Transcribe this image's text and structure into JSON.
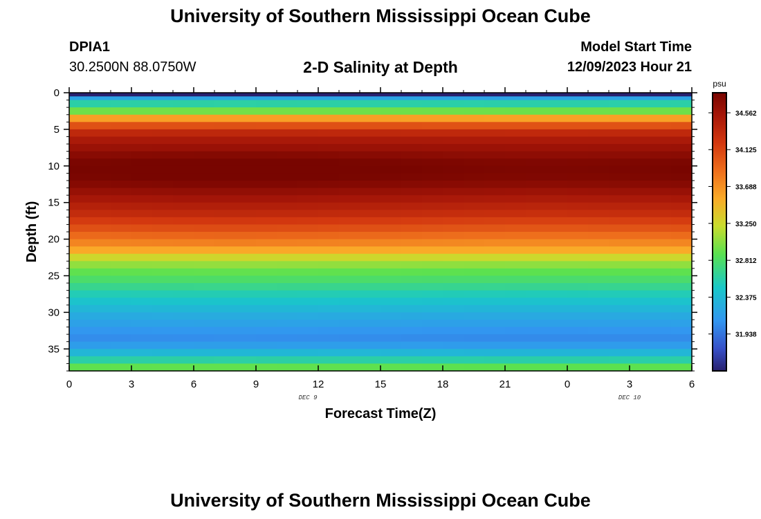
{
  "header": {
    "title": "University of Southern Mississippi Ocean Cube",
    "station_id": "DPIA1",
    "coordinates": "30.2500N  88.0750W",
    "plot_title": "2-D Salinity at Depth",
    "model_start_label": "Model Start Time",
    "model_start_value": "12/09/2023 Hour 21"
  },
  "footer": {
    "title": "University of Southern Mississippi Ocean Cube"
  },
  "colors": {
    "axis": "#000000",
    "background": "#ffffff"
  },
  "chart_data": {
    "type": "heatmap",
    "title": "2-D Salinity at Depth",
    "xlabel": "Forecast Time(Z)",
    "ylabel": "Depth (ft)",
    "x_ticks": [
      "0",
      "3",
      "6",
      "9",
      "12",
      "15",
      "18",
      "21",
      "0",
      "3",
      "6"
    ],
    "x_range_hours": [
      0,
      30
    ],
    "date_labels": [
      {
        "text": "DEC 9",
        "hour": 11.5
      },
      {
        "text": "DEC 10",
        "hour": 27
      }
    ],
    "y_ticks": [
      "0",
      "5",
      "10",
      "15",
      "20",
      "25",
      "30",
      "35"
    ],
    "y_range_ft": [
      0,
      38
    ],
    "depth_layers_ft": [
      0.5,
      1.0,
      2.0,
      3.0,
      4.0,
      5.0,
      6.0,
      7.0,
      8.0,
      9.0,
      10.0,
      11.0,
      12.0,
      13.0,
      14.0,
      15.0,
      16.0,
      17.0,
      18.0,
      19.0,
      20.0,
      21.0,
      22.0,
      23.0,
      24.0,
      25.0,
      26.0,
      27.0,
      28.0,
      29.0,
      30.0,
      31.0,
      32.0,
      33.0,
      34.0,
      35.0,
      36.0,
      37.0,
      38.0
    ],
    "salinity_profile_psu": [
      31.3,
      32.2,
      32.6,
      32.95,
      33.6,
      34.05,
      34.35,
      34.5,
      34.6,
      34.7,
      34.78,
      34.8,
      34.78,
      34.72,
      34.62,
      34.52,
      34.42,
      34.32,
      34.18,
      34.05,
      33.9,
      33.75,
      33.55,
      33.25,
      33.05,
      32.9,
      32.8,
      32.68,
      32.55,
      32.45,
      32.35,
      32.25,
      32.18,
      32.1,
      32.05,
      32.15,
      32.35,
      32.6,
      32.9
    ],
    "colorbar": {
      "unit": "psu",
      "min": 31.5,
      "max": 34.8,
      "tick_values": [
        34.562,
        34.125,
        33.688,
        33.25,
        32.812,
        32.375,
        31.938
      ],
      "tick_labels": [
        "34.562",
        "34.125",
        "33.688",
        "33.250",
        "32.812",
        "32.375",
        "31.938"
      ]
    }
  }
}
